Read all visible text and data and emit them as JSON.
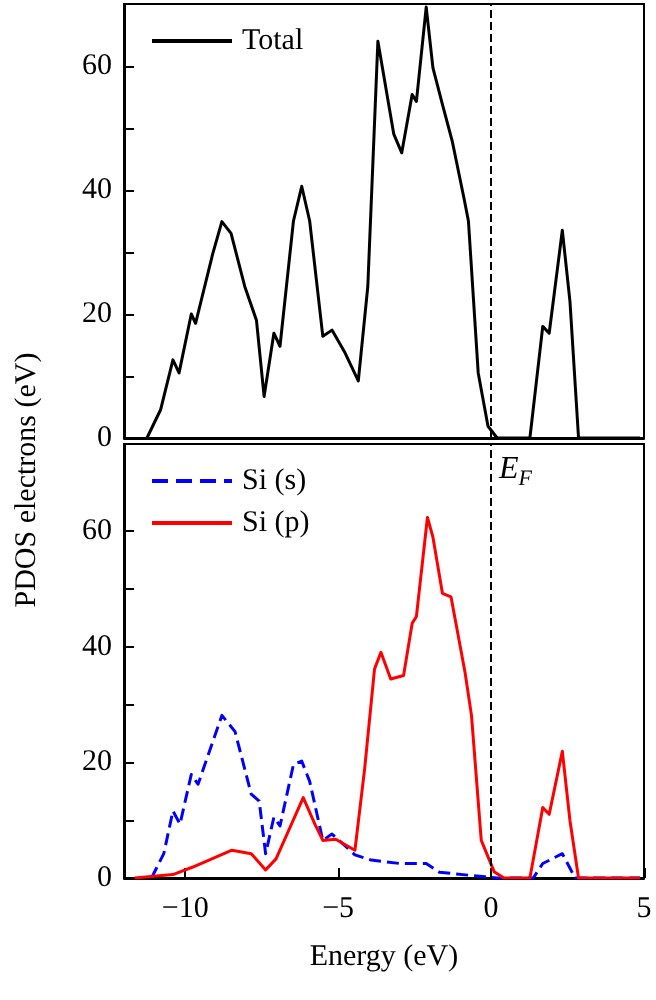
{
  "chart_data": [
    {
      "type": "line",
      "ylabel": "PDOS electrons (eV)",
      "xlim": [
        -12,
        5
      ],
      "ylim": [
        0,
        70
      ],
      "yticks": [
        0,
        {
          "value": 10,
          "label": null
        },
        20,
        {
          "value": 30,
          "label": null
        },
        40,
        {
          "value": 50,
          "label": null
        },
        60
      ],
      "tick_labels": "y",
      "grid": false,
      "legend": "top left",
      "marker": "none",
      "ref_lines": [
        {
          "axis": "x",
          "value": 0,
          "color": "#000000",
          "line_style": "dashed"
        }
      ],
      "series": [
        {
          "name": "Total",
          "color": "#000000",
          "line_style": "solid",
          "x": [
            -11.25,
            -10.8,
            -10.4,
            -10.2,
            -9.8,
            -9.66,
            -9.1,
            -8.8,
            -8.5,
            -8.05,
            -7.67,
            -7.42,
            -7.1,
            -6.9,
            -6.46,
            -6.19,
            -5.93,
            -5.5,
            -5.2,
            -4.77,
            -4.34,
            -4.03,
            -3.7,
            -3.18,
            -2.92,
            -2.58,
            -2.44,
            -2.12,
            -1.9,
            -1.59,
            -1.27,
            -0.89,
            -0.74,
            -0.42,
            -0.1,
            0.2,
            1.27,
            1.69,
            1.9,
            2.33,
            2.58,
            2.86,
            4.87
          ],
          "values": [
            0,
            4.6,
            12.6,
            10.5,
            20,
            18.5,
            29.7,
            34.9,
            33,
            24.4,
            19,
            6.7,
            16.9,
            14.8,
            35,
            40.6,
            35,
            16.4,
            17.4,
            13.7,
            9.2,
            24.4,
            64,
            49,
            46,
            55.4,
            54.3,
            69.5,
            59.7,
            53.8,
            47.9,
            38.8,
            35,
            10.5,
            1.9,
            0,
            0,
            18,
            16.9,
            33.5,
            22,
            0,
            0
          ]
        }
      ]
    },
    {
      "type": "line",
      "xlabel": "Energy (eV)",
      "xlim": [
        -12,
        5
      ],
      "ylim": [
        0,
        75
      ],
      "xticks": [
        {
          "value": -10,
          "label": "−10"
        },
        {
          "value": -5,
          "label": "−5"
        },
        0,
        5
      ],
      "yticks": [
        0,
        {
          "value": 10,
          "label": null
        },
        20,
        {
          "value": 30,
          "label": null
        },
        40,
        {
          "value": 50,
          "label": null
        },
        60
      ],
      "grid": false,
      "legend": "top left",
      "marker": "none",
      "ref_lines": [
        {
          "axis": "x",
          "value": 0,
          "label": "E$_{F}$",
          "color": "#000000",
          "line_style": "dashed"
        }
      ],
      "series": [
        {
          "name": "Si (s)",
          "color": "#0000ff",
          "line_style": "dashed",
          "x": [
            -11.1,
            -10.7,
            -10.4,
            -10.17,
            -9.8,
            -9.58,
            -8.8,
            -8.37,
            -7.84,
            -7.58,
            -7.37,
            -7.1,
            -6.9,
            -6.46,
            -6.19,
            -5.93,
            -5.5,
            -5.2,
            -4.45,
            -3.92,
            -2.97,
            -2.12,
            -1.69,
            -0.2,
            0.2,
            1.38,
            1.69,
            2.33,
            2.75,
            4.87
          ],
          "values": [
            0,
            4.2,
            11.6,
            9.3,
            17.9,
            16.2,
            28.1,
            25.3,
            14.5,
            13.3,
            4.2,
            10.5,
            9,
            19.6,
            20.2,
            16.7,
            6.5,
            7.6,
            4,
            3.1,
            2.5,
            2.5,
            1,
            0.2,
            0,
            0,
            2.5,
            4.2,
            0,
            0
          ]
        },
        {
          "name": "Si (p)",
          "color": "#ff0000",
          "line_style": "solid",
          "x": [
            -11.65,
            -10.4,
            -9.75,
            -8.47,
            -7.84,
            -7.37,
            -7.03,
            -6.67,
            -6.14,
            -5.76,
            -5.5,
            -5.08,
            -4.45,
            -4.13,
            -3.81,
            -3.6,
            -3.28,
            -2.86,
            -2.58,
            -2.44,
            -2.08,
            -1.9,
            -1.59,
            -1.31,
            -0.85,
            -0.64,
            -0.32,
            0.1,
            0.42,
            1.27,
            1.69,
            1.9,
            2.33,
            2.58,
            2.86,
            4.87
          ],
          "values": [
            0,
            0.6,
            1.9,
            4.8,
            4.2,
            1.4,
            3.3,
            7.6,
            13.9,
            9.3,
            6.5,
            6.7,
            4.8,
            19,
            36.1,
            39,
            34.4,
            35,
            44,
            45.2,
            62.3,
            58.9,
            49.2,
            48.6,
            35.5,
            28.1,
            6.5,
            1.1,
            0,
            0,
            12.2,
            11,
            21.9,
            9.9,
            0,
            0
          ]
        }
      ]
    }
  ]
}
